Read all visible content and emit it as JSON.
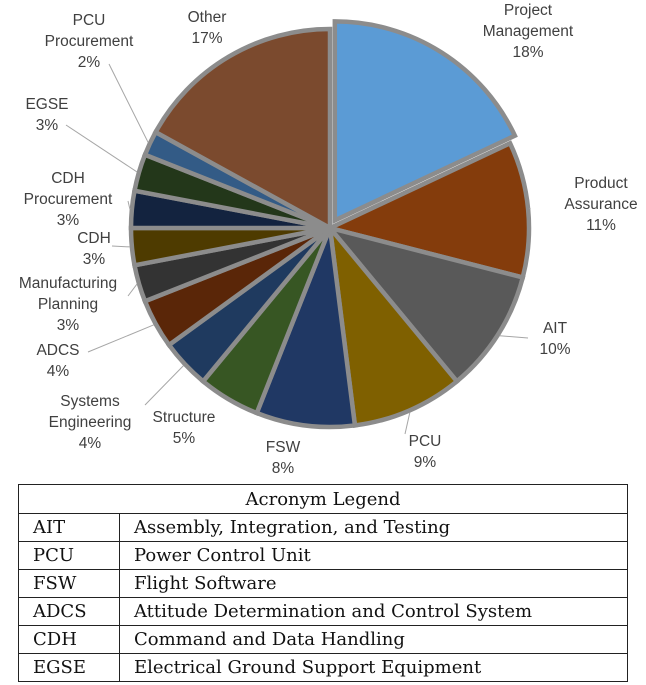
{
  "chart_data": {
    "type": "pie",
    "title": "",
    "explode": "Project Management",
    "slices": [
      {
        "name": "Project Management",
        "label_lines": [
          "Project",
          "Management"
        ],
        "pct_label": "18%",
        "value": 18,
        "color": "#5b9bd5"
      },
      {
        "name": "Product Assurance",
        "label_lines": [
          "Product",
          "Assurance"
        ],
        "pct_label": "11%",
        "value": 11,
        "color": "#843c0c"
      },
      {
        "name": "AIT",
        "label_lines": [
          "AIT"
        ],
        "pct_label": "10%",
        "value": 10,
        "color": "#595959"
      },
      {
        "name": "PCU",
        "label_lines": [
          "PCU"
        ],
        "pct_label": "9%",
        "value": 9,
        "color": "#7f6000"
      },
      {
        "name": "FSW",
        "label_lines": [
          "FSW"
        ],
        "pct_label": "8%",
        "value": 8,
        "color": "#203864"
      },
      {
        "name": "Structure",
        "label_lines": [
          "Structure"
        ],
        "pct_label": "5%",
        "value": 5,
        "color": "#375623"
      },
      {
        "name": "Systems Engineering",
        "label_lines": [
          "Systems",
          "Engineering"
        ],
        "pct_label": "4%",
        "value": 4,
        "color": "#1f3a5f"
      },
      {
        "name": "ADCS",
        "label_lines": [
          "ADCS"
        ],
        "pct_label": "4%",
        "value": 4,
        "color": "#5a2608"
      },
      {
        "name": "Manufacturing Planning",
        "label_lines": [
          "Manufacturing",
          "Planning"
        ],
        "pct_label": "3%",
        "value": 3,
        "color": "#333333"
      },
      {
        "name": "CDH",
        "label_lines": [
          "CDH"
        ],
        "pct_label": "3%",
        "value": 3,
        "color": "#4e3b00"
      },
      {
        "name": "CDH Procurement",
        "label_lines": [
          "CDH",
          "Procurement"
        ],
        "pct_label": "3%",
        "value": 3,
        "color": "#13233f"
      },
      {
        "name": "EGSE",
        "label_lines": [
          "EGSE"
        ],
        "pct_label": "3%",
        "value": 3,
        "color": "#23371a"
      },
      {
        "name": "PCU Procurement",
        "label_lines": [
          "PCU",
          "Procurement"
        ],
        "pct_label": "2%",
        "value": 2,
        "color": "#335b86"
      },
      {
        "name": "Other",
        "label_lines": [
          "Other"
        ],
        "pct_label": "17%",
        "value": 17,
        "color": "#7b4a2e"
      }
    ]
  },
  "legend": {
    "title": "Acronym Legend",
    "rows": [
      {
        "abbr": "AIT",
        "meaning": "Assembly, Integration, and Testing"
      },
      {
        "abbr": "PCU",
        "meaning": "Power Control Unit"
      },
      {
        "abbr": "FSW",
        "meaning": "Flight Software"
      },
      {
        "abbr": "ADCS",
        "meaning": "Attitude Determination and Control System"
      },
      {
        "abbr": "CDH",
        "meaning": "Command and Data Handling"
      },
      {
        "abbr": "EGSE",
        "meaning": "Electrical Ground Support Equipment"
      }
    ]
  }
}
